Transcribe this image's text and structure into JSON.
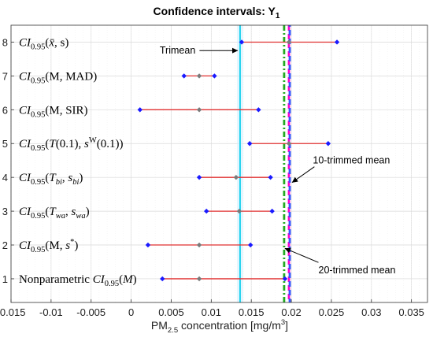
{
  "chart_data": {
    "type": "interval",
    "title": "Confidence intervals: Y",
    "title_subscript": "1",
    "xlabel": {
      "prefix": "PM",
      "prefix_sub": "2.5",
      "middle": " concentration [mg/m",
      "sup": "3",
      "suffix": "]"
    },
    "xlim": [
      -0.015,
      0.037
    ],
    "ylim": [
      0.3,
      8.5
    ],
    "x_ticks": [
      -0.015,
      -0.01,
      -0.005,
      0,
      0.005,
      0.01,
      0.015,
      0.02,
      0.025,
      0.03,
      0.035
    ],
    "x_tick_labels": [
      "-0.015",
      "-0.01",
      "-0.005",
      "0",
      "0.005",
      "0.01",
      "0.015",
      "0.02",
      "0.025",
      "0.03",
      "0.035"
    ],
    "y_ticks": [
      1,
      2,
      3,
      4,
      5,
      6,
      7,
      8
    ],
    "y_tick_labels": [
      "1",
      "2",
      "3",
      "4",
      "5",
      "6",
      "7",
      "8"
    ],
    "grid": true,
    "intervals": [
      {
        "y": 8,
        "label": "CI_0.95(x̄, s)",
        "low": 0.0138,
        "mid": 0.0197,
        "high": 0.0257
      },
      {
        "y": 7,
        "label": "CI_0.95(M, MAD)",
        "low": 0.0066,
        "mid": 0.0085,
        "high": 0.0104
      },
      {
        "y": 6,
        "label": "CI_0.95(M, SIR)",
        "low": 0.0011,
        "mid": 0.0085,
        "high": 0.0159
      },
      {
        "y": 5,
        "label": "CI_0.95(T(0.1), s^W(0.1))",
        "low": 0.0148,
        "mid": 0.0197,
        "high": 0.0246
      },
      {
        "y": 4,
        "label": "CI_0.95(T_bi, s_bi)",
        "low": 0.0085,
        "mid": 0.0131,
        "high": 0.0174
      },
      {
        "y": 3,
        "label": "CI_0.95(T_wa, s_wa)",
        "low": 0.0094,
        "mid": 0.0135,
        "high": 0.0176
      },
      {
        "y": 2,
        "label": "CI_0.95(M, s*)",
        "low": 0.0021,
        "mid": 0.0085,
        "high": 0.0149
      },
      {
        "y": 1,
        "label": "Nonparametric CI_0.95(M)",
        "low": 0.0039,
        "mid": 0.0085,
        "high": 0.0192
      }
    ],
    "reference_lines": [
      {
        "name": "Trimean",
        "x": 0.0136,
        "color": "#22d3ee",
        "style": "solid"
      },
      {
        "name": "20-trimmed mean",
        "x": 0.0191,
        "color": "#22aa22",
        "style": "dash-dot"
      },
      {
        "name": "10-trimmed mean",
        "x": 0.0197,
        "color": "#ff00cc",
        "style": "dashed"
      },
      {
        "name": "10-trimmed mean overlay",
        "x": 0.0198,
        "color": "#3355ff",
        "style": "dashed"
      }
    ],
    "annotations": [
      {
        "text": "Trimean",
        "text_x": 0.0058,
        "text_y": 7.75,
        "arrow_to_x": 0.0133,
        "arrow_to_y": 7.75
      },
      {
        "text": "10-trimmed mean",
        "text_x": 0.0275,
        "text_y": 4.5,
        "arrow_to_x": 0.0201,
        "arrow_to_y": 3.85
      },
      {
        "text": "20-trimmed mean",
        "text_x": 0.0282,
        "text_y": 1.25,
        "arrow_to_x": 0.0192,
        "arrow_to_y": 1.9
      }
    ],
    "colors": {
      "interval_line": "#e03030",
      "endpoint_marker": "#1a1aff",
      "mid_marker": "#7a7a7a",
      "shade_band": "#cfeefd"
    }
  }
}
